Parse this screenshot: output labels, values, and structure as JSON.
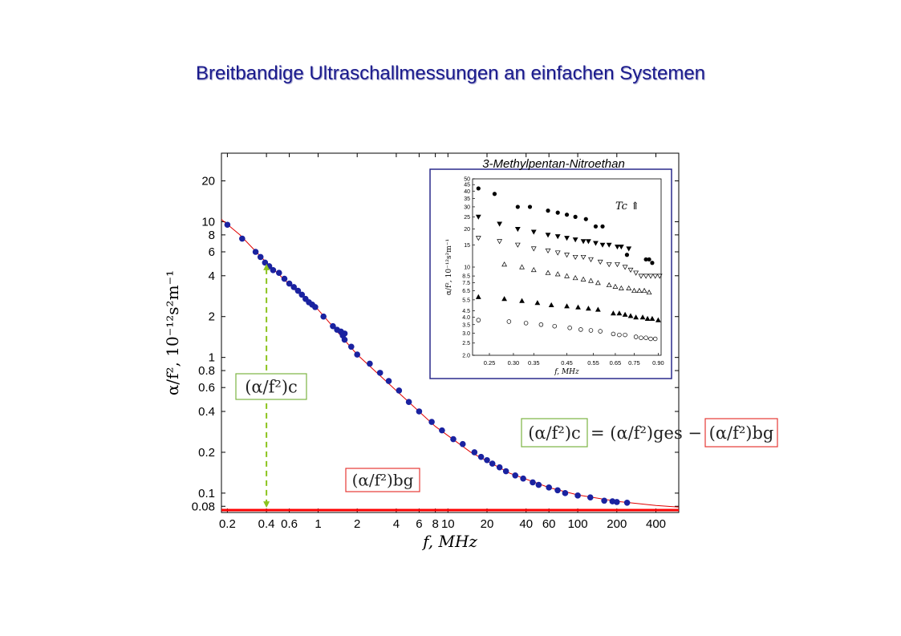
{
  "slide_title": "Breitbandige Ultraschallmessungen an einfachen Systemen",
  "main_xlabel": "f, MHz",
  "main_ylabel": "α/f², 10⁻¹²s²m⁻¹",
  "colors": {
    "points": "#1a22a0",
    "fit": "#e00000",
    "background_line": "#ff0000",
    "arrow": "#8cc31e",
    "label_box_green": "#7cb342",
    "label_box_red": "#e53935",
    "title": "#1a1a8c",
    "inset_frame": "#2a2a8c"
  },
  "labels": {
    "critical": "(α/f²)c",
    "background": "(α/f²)bg",
    "equation_lhs": "(α/f²)c",
    "equation_mid": "= (α/f²)ges −",
    "equation_rhs": "(α/f²)bg"
  },
  "inset": {
    "title": "3-Methylpentan-Nitroethan",
    "annotation": "Tc ⇑",
    "xlabel": "f, MHz",
    "ylabel": "α/f², 10⁻¹²s²m⁻¹"
  },
  "chart_data": [
    {
      "type": "scatter",
      "name": "main",
      "xscale": "log",
      "yscale": "log",
      "xlim": [
        0.18,
        600
      ],
      "ylim": [
        0.072,
        32
      ],
      "xticks": [
        0.2,
        0.4,
        0.6,
        1,
        2,
        4,
        6,
        8,
        10,
        20,
        40,
        60,
        100,
        200,
        400
      ],
      "xtick_labels": [
        "0.2",
        "0.4",
        "0.6",
        "1",
        "2",
        "4",
        "6",
        "8",
        "10",
        "20",
        "40",
        "60",
        "100",
        "200",
        "400"
      ],
      "yticks": [
        0.08,
        0.1,
        0.2,
        0.4,
        0.6,
        0.8,
        1,
        2,
        4,
        6,
        8,
        10,
        20
      ],
      "ytick_labels": [
        "0.08",
        "0.1",
        "0.2",
        "0.4",
        "0.6",
        "0.8",
        "1",
        "2",
        "4",
        "6",
        "8",
        "10",
        "20"
      ],
      "grid": false,
      "points": [
        [
          0.2,
          9.5
        ],
        [
          0.26,
          7.5
        ],
        [
          0.33,
          6.0
        ],
        [
          0.36,
          5.5
        ],
        [
          0.39,
          5.0
        ],
        [
          0.42,
          4.7
        ],
        [
          0.45,
          4.4
        ],
        [
          0.5,
          4.2
        ],
        [
          0.55,
          3.8
        ],
        [
          0.6,
          3.5
        ],
        [
          0.65,
          3.3
        ],
        [
          0.7,
          3.1
        ],
        [
          0.75,
          2.9
        ],
        [
          0.8,
          2.7
        ],
        [
          0.85,
          2.55
        ],
        [
          0.9,
          2.45
        ],
        [
          0.95,
          2.35
        ],
        [
          1.1,
          2.0
        ],
        [
          1.3,
          1.7
        ],
        [
          1.4,
          1.6
        ],
        [
          1.5,
          1.55
        ],
        [
          1.55,
          1.45
        ],
        [
          1.6,
          1.5
        ],
        [
          1.6,
          1.35
        ],
        [
          1.8,
          1.2
        ],
        [
          2.0,
          1.05
        ],
        [
          2.5,
          0.9
        ],
        [
          3.0,
          0.77
        ],
        [
          3.5,
          0.67
        ],
        [
          4.2,
          0.57
        ],
        [
          5.0,
          0.47
        ],
        [
          6.0,
          0.4
        ],
        [
          7.5,
          0.335
        ],
        [
          9.0,
          0.29
        ],
        [
          11,
          0.25
        ],
        [
          13,
          0.23
        ],
        [
          16,
          0.2
        ],
        [
          18,
          0.185
        ],
        [
          20,
          0.175
        ],
        [
          22,
          0.165
        ],
        [
          25,
          0.155
        ],
        [
          28,
          0.145
        ],
        [
          33,
          0.135
        ],
        [
          38,
          0.128
        ],
        [
          45,
          0.12
        ],
        [
          50,
          0.115
        ],
        [
          60,
          0.11
        ],
        [
          70,
          0.105
        ],
        [
          80,
          0.1
        ],
        [
          100,
          0.096
        ],
        [
          125,
          0.093
        ],
        [
          160,
          0.088
        ],
        [
          185,
          0.087
        ],
        [
          200,
          0.086
        ],
        [
          240,
          0.085
        ]
      ],
      "fit_curve": [
        [
          0.18,
          10.4
        ],
        [
          0.25,
          8.0
        ],
        [
          0.4,
          5.0
        ],
        [
          0.7,
          3.0
        ],
        [
          1,
          2.25
        ],
        [
          2,
          1.05
        ],
        [
          4,
          0.57
        ],
        [
          8,
          0.31
        ],
        [
          15,
          0.2
        ],
        [
          30,
          0.14
        ],
        [
          60,
          0.11
        ],
        [
          100,
          0.097
        ],
        [
          200,
          0.087
        ],
        [
          400,
          0.081
        ],
        [
          600,
          0.079
        ]
      ],
      "background_level": 0.075,
      "arrow": {
        "x": 0.4,
        "from": 0.078,
        "to": 4.9
      }
    },
    {
      "type": "scatter",
      "name": "inset",
      "xscale": "log",
      "yscale": "log",
      "xlim": [
        0.22,
        0.92
      ],
      "ylim": [
        2.0,
        50
      ],
      "xticks": [
        0.25,
        0.3,
        0.35,
        0.45,
        0.55,
        0.65,
        0.75,
        0.9
      ],
      "xtick_labels": [
        "0.25",
        "0.30",
        "0.35",
        "0.45",
        "0.55",
        "0.65",
        "0.75",
        "0.90"
      ],
      "yticks": [
        2.0,
        2.5,
        3.0,
        3.5,
        4.0,
        4.5,
        5.5,
        6.5,
        7.5,
        8.5,
        10,
        15,
        20,
        25,
        30,
        35,
        40,
        45,
        50
      ],
      "ytick_labels": [
        "2.0",
        "2.5",
        "3.0",
        "3.5",
        "4.0",
        "4.5",
        "5.5",
        "6.5",
        "7.5",
        "8.5",
        "10",
        "15",
        "20",
        "25",
        "30",
        "35",
        "40",
        "45",
        "50"
      ],
      "series": [
        {
          "marker": "filled-circle",
          "points": [
            [
              0.23,
              42
            ],
            [
              0.26,
              38
            ],
            [
              0.31,
              30
            ],
            [
              0.34,
              30
            ],
            [
              0.39,
              28
            ],
            [
              0.42,
              27
            ],
            [
              0.45,
              26
            ],
            [
              0.48,
              25
            ],
            [
              0.52,
              24
            ],
            [
              0.56,
              21
            ],
            [
              0.59,
              21
            ],
            [
              0.71,
              12.5
            ],
            [
              0.82,
              11.5
            ],
            [
              0.84,
              11.5
            ],
            [
              0.86,
              10.8
            ]
          ]
        },
        {
          "marker": "filled-triangle-down",
          "points": [
            [
              0.23,
              25
            ],
            [
              0.27,
              22
            ],
            [
              0.31,
              20
            ],
            [
              0.35,
              19
            ],
            [
              0.39,
              18
            ],
            [
              0.42,
              17.5
            ],
            [
              0.45,
              17
            ],
            [
              0.48,
              16.5
            ],
            [
              0.51,
              16
            ],
            [
              0.53,
              16
            ],
            [
              0.56,
              15.5
            ],
            [
              0.59,
              15
            ],
            [
              0.62,
              15
            ],
            [
              0.66,
              14.5
            ],
            [
              0.68,
              14.5
            ],
            [
              0.72,
              14
            ]
          ]
        },
        {
          "marker": "open-triangle-down",
          "points": [
            [
              0.23,
              17
            ],
            [
              0.27,
              16
            ],
            [
              0.31,
              15
            ],
            [
              0.35,
              14
            ],
            [
              0.39,
              13.5
            ],
            [
              0.42,
              13
            ],
            [
              0.45,
              12.5
            ],
            [
              0.48,
              12
            ],
            [
              0.51,
              12
            ],
            [
              0.54,
              11.5
            ],
            [
              0.58,
              11
            ],
            [
              0.62,
              10.5
            ],
            [
              0.66,
              10.5
            ],
            [
              0.7,
              10
            ],
            [
              0.73,
              9.5
            ],
            [
              0.76,
              9
            ],
            [
              0.79,
              8.5
            ],
            [
              0.82,
              8.5
            ],
            [
              0.85,
              8.5
            ],
            [
              0.88,
              8.5
            ],
            [
              0.91,
              8.5
            ]
          ]
        },
        {
          "marker": "open-triangle-up",
          "points": [
            [
              0.28,
              10.5
            ],
            [
              0.32,
              10
            ],
            [
              0.35,
              9.5
            ],
            [
              0.39,
              9
            ],
            [
              0.42,
              8.8
            ],
            [
              0.45,
              8.5
            ],
            [
              0.48,
              8.2
            ],
            [
              0.51,
              8
            ],
            [
              0.54,
              7.8
            ],
            [
              0.57,
              7.5
            ],
            [
              0.62,
              7.2
            ],
            [
              0.65,
              7.0
            ],
            [
              0.68,
              6.8
            ],
            [
              0.72,
              6.8
            ],
            [
              0.75,
              6.5
            ],
            [
              0.78,
              6.5
            ],
            [
              0.81,
              6.5
            ],
            [
              0.84,
              6.3
            ]
          ]
        },
        {
          "marker": "filled-triangle-up",
          "points": [
            [
              0.23,
              5.8
            ],
            [
              0.28,
              5.6
            ],
            [
              0.32,
              5.4
            ],
            [
              0.36,
              5.2
            ],
            [
              0.4,
              5.0
            ],
            [
              0.45,
              4.9
            ],
            [
              0.49,
              4.8
            ],
            [
              0.53,
              4.7
            ],
            [
              0.57,
              4.6
            ],
            [
              0.64,
              4.3
            ],
            [
              0.67,
              4.3
            ],
            [
              0.7,
              4.2
            ],
            [
              0.73,
              4.1
            ],
            [
              0.76,
              4.0
            ],
            [
              0.8,
              4.0
            ],
            [
              0.83,
              3.9
            ],
            [
              0.86,
              3.9
            ],
            [
              0.9,
              3.8
            ]
          ]
        },
        {
          "marker": "open-circle",
          "points": [
            [
              0.23,
              3.8
            ],
            [
              0.29,
              3.7
            ],
            [
              0.33,
              3.6
            ],
            [
              0.37,
              3.5
            ],
            [
              0.41,
              3.4
            ],
            [
              0.46,
              3.3
            ],
            [
              0.5,
              3.2
            ],
            [
              0.54,
              3.15
            ],
            [
              0.58,
              3.1
            ],
            [
              0.64,
              2.95
            ],
            [
              0.67,
              2.9
            ],
            [
              0.7,
              2.9
            ],
            [
              0.76,
              2.8
            ],
            [
              0.79,
              2.75
            ],
            [
              0.82,
              2.75
            ],
            [
              0.85,
              2.7
            ],
            [
              0.88,
              2.7
            ]
          ]
        }
      ]
    }
  ]
}
